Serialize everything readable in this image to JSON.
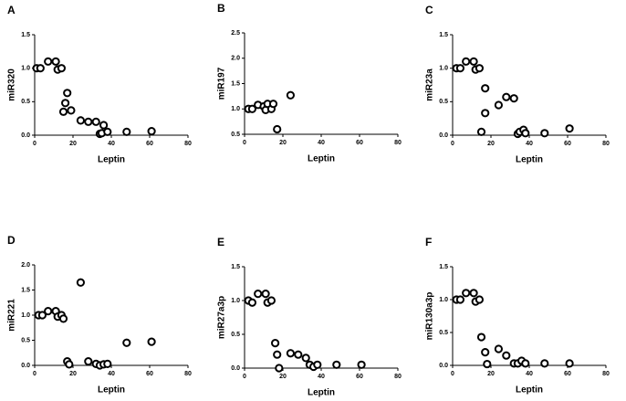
{
  "chart_data": [
    {
      "type": "scatter",
      "panel": "A",
      "xlabel": "Leptin",
      "ylabel": "miR320",
      "color": "#000000",
      "x": [
        1,
        3,
        7,
        11,
        12,
        14,
        15,
        16,
        17,
        19,
        24,
        28,
        32,
        34,
        35,
        36,
        38,
        48,
        61
      ],
      "values": [
        1.0,
        1.0,
        1.1,
        1.1,
        0.98,
        1.0,
        0.35,
        0.48,
        0.63,
        0.37,
        0.22,
        0.2,
        0.2,
        0.02,
        0.03,
        0.15,
        0.05,
        0.05,
        0.06
      ],
      "xlim": [
        0,
        80
      ],
      "xticks": [
        0,
        20,
        40,
        60,
        80
      ],
      "ylim": [
        0,
        1.5
      ],
      "yticks": [
        {
          "value": 0,
          "label": "0.0"
        },
        0.5,
        {
          "value": 1,
          "label": "1.0"
        },
        1.5
      ]
    },
    {
      "type": "scatter",
      "panel": "B",
      "xlabel": "Leptin",
      "ylabel": "miR197",
      "color": "#000000",
      "x": [
        2,
        4,
        7,
        10,
        11,
        12,
        14,
        15,
        17,
        24
      ],
      "values": [
        1.0,
        1.0,
        1.08,
        1.05,
        0.98,
        1.1,
        1.0,
        1.1,
        0.6,
        1.27
      ],
      "xlim": [
        0,
        80
      ],
      "xticks": [
        0,
        20,
        40,
        60,
        80
      ],
      "ylim": [
        0.5,
        2.5
      ],
      "yticks": [
        0.5,
        {
          "value": 1,
          "label": "1.0"
        },
        1.5,
        {
          "value": 2,
          "label": "2.0"
        },
        2.5
      ]
    },
    {
      "type": "scatter",
      "panel": "C",
      "xlabel": "Leptin",
      "ylabel": "miR23a",
      "color": "#000000",
      "x": [
        2,
        4,
        7,
        11,
        12,
        14,
        15,
        17,
        17,
        24,
        28,
        32,
        34,
        35,
        37,
        38,
        48,
        61
      ],
      "values": [
        1.0,
        1.0,
        1.1,
        1.1,
        0.98,
        1.0,
        0.05,
        0.33,
        0.7,
        0.45,
        0.57,
        0.55,
        0.02,
        0.05,
        0.08,
        0.03,
        0.03,
        0.1
      ],
      "xlim": [
        0,
        80
      ],
      "xticks": [
        0,
        20,
        40,
        60,
        80
      ],
      "ylim": [
        0,
        1.5
      ],
      "yticks": [
        {
          "value": 0,
          "label": "0.0"
        },
        0.5,
        {
          "value": 1,
          "label": "1.0"
        },
        1.5
      ]
    },
    {
      "type": "scatter",
      "panel": "D",
      "xlabel": "Leptin",
      "ylabel": "miR221",
      "color": "#000000",
      "x": [
        2,
        4,
        7,
        11,
        12,
        14,
        15,
        17,
        18,
        24,
        28,
        32,
        34,
        36,
        38,
        48,
        61
      ],
      "values": [
        1.0,
        1.0,
        1.08,
        1.08,
        0.97,
        1.0,
        0.93,
        0.08,
        0.02,
        1.65,
        0.08,
        0.03,
        0.0,
        0.02,
        0.03,
        0.45,
        0.47
      ],
      "xlim": [
        0,
        80
      ],
      "xticks": [
        0,
        20,
        40,
        60,
        80
      ],
      "ylim": [
        0,
        2
      ],
      "yticks": [
        {
          "value": 0,
          "label": "0.0"
        },
        0.5,
        {
          "value": 1,
          "label": "1.0"
        },
        1.5,
        {
          "value": 2,
          "label": "2.0"
        }
      ]
    },
    {
      "type": "scatter",
      "panel": "E",
      "xlabel": "Leptin",
      "ylabel": "miR27a3p",
      "color": "#000000",
      "x": [
        2,
        4,
        7,
        11,
        12,
        14,
        16,
        17,
        18,
        24,
        28,
        32,
        34,
        36,
        38,
        48,
        61
      ],
      "values": [
        1.0,
        0.97,
        1.1,
        1.1,
        0.97,
        1.0,
        0.37,
        0.2,
        0.0,
        0.22,
        0.2,
        0.15,
        0.05,
        0.02,
        0.05,
        0.05,
        0.05
      ],
      "xlim": [
        0,
        80
      ],
      "xticks": [
        0,
        20,
        40,
        60,
        80
      ],
      "ylim": [
        0,
        1.5
      ],
      "yticks": [
        {
          "value": 0,
          "label": "0.0"
        },
        0.5,
        {
          "value": 1,
          "label": "1.0"
        },
        1.5
      ]
    },
    {
      "type": "scatter",
      "panel": "F",
      "xlabel": "Leptin",
      "ylabel": "miR130a3p",
      "color": "#000000",
      "x": [
        2,
        4,
        7,
        11,
        12,
        14,
        15,
        17,
        18,
        24,
        28,
        32,
        34,
        36,
        38,
        48,
        61
      ],
      "values": [
        1.0,
        1.0,
        1.1,
        1.1,
        0.97,
        1.0,
        0.43,
        0.2,
        0.02,
        0.25,
        0.15,
        0.03,
        0.03,
        0.07,
        0.03,
        0.03,
        0.03
      ],
      "xlim": [
        0,
        80
      ],
      "xticks": [
        0,
        20,
        40,
        60,
        80
      ],
      "ylim": [
        0,
        1.5
      ],
      "yticks": [
        {
          "value": 0,
          "label": "0.0"
        },
        0.5,
        {
          "value": 1,
          "label": "1.0"
        },
        1.5
      ]
    }
  ]
}
